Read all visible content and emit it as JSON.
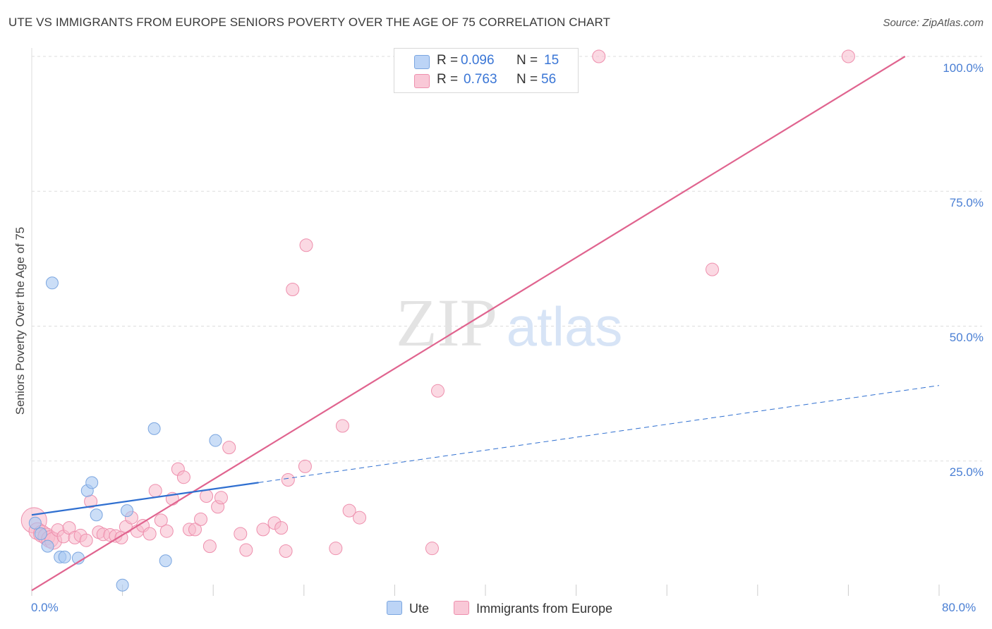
{
  "title": "UTE VS IMMIGRANTS FROM EUROPE SENIORS POVERTY OVER THE AGE OF 75 CORRELATION CHART",
  "source": "Source: ZipAtlas.com",
  "watermark": {
    "zip": "ZIP",
    "atlas": "atlas"
  },
  "legend_top": {
    "rows": [
      {
        "r_label": "R =",
        "r_value": "0.096",
        "n_label": "N =",
        "n_value": "15"
      },
      {
        "r_label": "R =",
        "r_value": "0.763",
        "n_label": "N =",
        "n_value": "56"
      }
    ]
  },
  "colors": {
    "ute_fill": "#a9c8f2",
    "ute_stroke": "#7ba6e0",
    "ute_line": "#2f6fd0",
    "europe_fill": "#f7b9cc",
    "europe_stroke": "#ee8fad",
    "europe_line": "#e0648f",
    "grid": "#dddddd",
    "axis_text": "#4a7fd4"
  },
  "chart_data": {
    "type": "scatter",
    "title": "UTE VS IMMIGRANTS FROM EUROPE SENIORS POVERTY OVER THE AGE OF 75 CORRELATION CHART",
    "xlabel": "",
    "ylabel": "Seniors Poverty Over the Age of 75",
    "xlim": [
      0,
      80
    ],
    "ylim": [
      0,
      100
    ],
    "x_tick_labels": [
      "0.0%",
      "80.0%"
    ],
    "y_ticks": [
      25,
      50,
      75,
      100
    ],
    "y_tick_labels": [
      "25.0%",
      "50.0%",
      "75.0%",
      "100.0%"
    ],
    "legend": [
      "Ute",
      "Immigrants from Europe"
    ],
    "series": [
      {
        "name": "Ute",
        "r": 0.096,
        "n": 15,
        "points": [
          [
            0.3,
            13.5
          ],
          [
            0.8,
            11.5
          ],
          [
            1.4,
            9.2
          ],
          [
            1.8,
            58.0
          ],
          [
            2.5,
            7.2
          ],
          [
            2.9,
            7.2
          ],
          [
            4.1,
            7.0
          ],
          [
            4.9,
            19.5
          ],
          [
            5.3,
            21.0
          ],
          [
            5.7,
            15.0
          ],
          [
            8.0,
            2.0
          ],
          [
            8.4,
            15.8
          ],
          [
            10.8,
            31.0
          ],
          [
            11.8,
            6.5
          ],
          [
            16.2,
            28.8
          ]
        ],
        "trend_solid": [
          [
            0,
            15.0
          ],
          [
            20,
            21.0
          ]
        ],
        "trend_dashed": [
          [
            20,
            21.0
          ],
          [
            80,
            39.0
          ]
        ]
      },
      {
        "name": "Immigrants from Europe",
        "r": 0.763,
        "n": 56,
        "points": [
          [
            0.2,
            14.0
          ],
          [
            0.5,
            12.0
          ],
          [
            0.9,
            11.5
          ],
          [
            1.3,
            11.0
          ],
          [
            1.6,
            10.5
          ],
          [
            1.9,
            10.2
          ],
          [
            2.3,
            12.2
          ],
          [
            2.8,
            11.0
          ],
          [
            3.3,
            12.6
          ],
          [
            3.8,
            10.8
          ],
          [
            4.3,
            11.2
          ],
          [
            4.8,
            10.3
          ],
          [
            5.2,
            17.5
          ],
          [
            5.9,
            11.8
          ],
          [
            6.3,
            11.4
          ],
          [
            6.9,
            11.3
          ],
          [
            7.4,
            11.1
          ],
          [
            7.9,
            10.8
          ],
          [
            8.3,
            12.8
          ],
          [
            8.8,
            14.5
          ],
          [
            9.3,
            12.0
          ],
          [
            9.8,
            13.0
          ],
          [
            10.4,
            11.5
          ],
          [
            10.9,
            19.5
          ],
          [
            11.4,
            14.0
          ],
          [
            11.9,
            12.0
          ],
          [
            12.4,
            18.0
          ],
          [
            12.9,
            23.5
          ],
          [
            13.4,
            22.0
          ],
          [
            13.9,
            12.3
          ],
          [
            14.4,
            12.3
          ],
          [
            14.9,
            14.2
          ],
          [
            15.4,
            18.5
          ],
          [
            15.7,
            9.2
          ],
          [
            16.4,
            16.5
          ],
          [
            16.7,
            18.2
          ],
          [
            17.4,
            27.5
          ],
          [
            18.4,
            11.5
          ],
          [
            18.9,
            8.5
          ],
          [
            20.4,
            12.3
          ],
          [
            21.4,
            13.5
          ],
          [
            22.0,
            12.6
          ],
          [
            22.4,
            8.3
          ],
          [
            22.6,
            21.5
          ],
          [
            23.0,
            56.8
          ],
          [
            24.1,
            24.0
          ],
          [
            24.2,
            65.0
          ],
          [
            26.8,
            8.8
          ],
          [
            27.4,
            31.5
          ],
          [
            28.0,
            15.8
          ],
          [
            28.9,
            14.5
          ],
          [
            35.3,
            8.8
          ],
          [
            35.8,
            38.0
          ],
          [
            50.0,
            100.0
          ],
          [
            60.0,
            60.5
          ],
          [
            72.0,
            100.0
          ]
        ],
        "trend_solid": [
          [
            0,
            1.0
          ],
          [
            77,
            100.0
          ]
        ]
      }
    ]
  }
}
